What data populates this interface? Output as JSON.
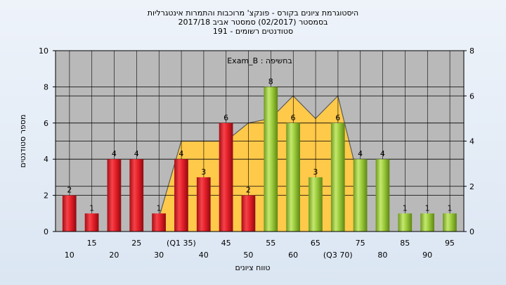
{
  "chart_data": {
    "type": "bar",
    "title_lines": [
      "היסטוגרמת ציונים בקורס - פונקצ' מרוכבות והתמרות אינטגרליות",
      "בסמסטר  (02/2017)  סמסטר אביב 2017/18",
      "סטודנטים רשומים - 191"
    ],
    "annotation": "Exam_B : בחשיפה",
    "xlabel": "טווח ציונים",
    "ylabel": "מספר סטודנטים",
    "categories": [
      "10",
      "15",
      "20",
      "25",
      "30",
      "(Q1 35)",
      "40",
      "45",
      "50",
      "55",
      "60",
      "65",
      "(Q3 70)",
      "75",
      "80",
      "85",
      "90",
      "95"
    ],
    "values": [
      2,
      1,
      4,
      4,
      1,
      4,
      3,
      6,
      2,
      8,
      6,
      3,
      6,
      4,
      4,
      1,
      1,
      1
    ],
    "bar_colors": [
      "red",
      "red",
      "red",
      "red",
      "red",
      "red",
      "red",
      "red",
      "red",
      "green",
      "green",
      "green",
      "green",
      "green",
      "green",
      "green",
      "green",
      "green"
    ],
    "ylim": [
      0,
      10
    ],
    "yticks": [
      0,
      2,
      4,
      6,
      8,
      10
    ],
    "y2lim": [
      0,
      8
    ],
    "y2ticks": [
      0,
      2,
      4,
      6,
      8
    ],
    "area_series": {
      "x": [
        "30",
        "(Q1 35)",
        "40",
        "45",
        "50",
        "55",
        "60",
        "65",
        "(Q3 70)",
        "75"
      ],
      "values": [
        0.6,
        4.0,
        4.0,
        4.0,
        4.8,
        5.0,
        6.0,
        5.0,
        6.0,
        2.0
      ]
    },
    "colors": {
      "plot_bg": "#b9b9b9",
      "red": "#e8202a",
      "green": "#9ccc3c",
      "area": "#ffc94a",
      "grid": "#000000"
    },
    "grid": true
  }
}
